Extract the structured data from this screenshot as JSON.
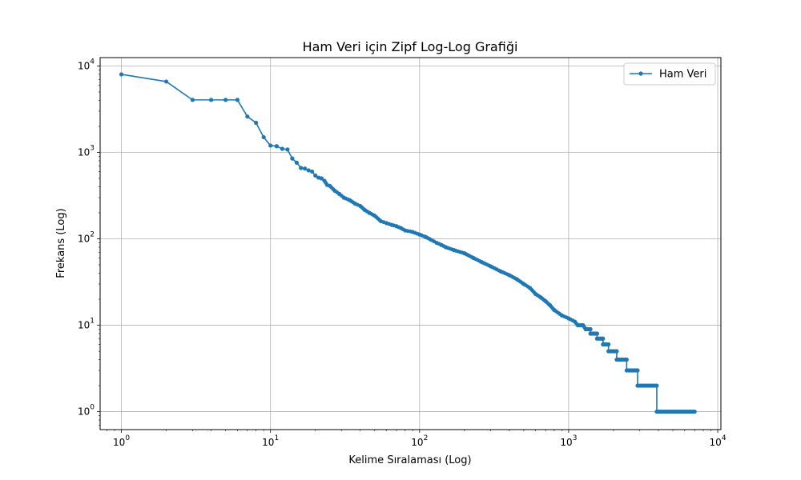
{
  "chart_data": {
    "type": "line",
    "title": "Ham Veri için Zipf Log-Log Grafiği",
    "xlabel": "Kelime Sıralaması (Log)",
    "ylabel": "Frekans (Log)",
    "xscale": "log",
    "yscale": "log",
    "xlim": [
      0.72,
      10500
    ],
    "ylim": [
      0.62,
      12500
    ],
    "grid": true,
    "legend": "top-right",
    "x_ticks": [
      {
        "base": "10",
        "exp": "0",
        "value": 1
      },
      {
        "base": "10",
        "exp": "1",
        "value": 10
      },
      {
        "base": "10",
        "exp": "2",
        "value": 100
      },
      {
        "base": "10",
        "exp": "3",
        "value": 1000
      },
      {
        "base": "10",
        "exp": "4",
        "value": 10000
      }
    ],
    "y_ticks": [
      {
        "base": "10",
        "exp": "0",
        "value": 1
      },
      {
        "base": "10",
        "exp": "1",
        "value": 10
      },
      {
        "base": "10",
        "exp": "2",
        "value": 100
      },
      {
        "base": "10",
        "exp": "3",
        "value": 1000
      },
      {
        "base": "10",
        "exp": "4",
        "value": 10000
      }
    ],
    "series": [
      {
        "name": "Ham Veri",
        "color": "#1f77b4",
        "marker": "circle",
        "points": [
          [
            1,
            8000
          ],
          [
            2,
            6600
          ],
          [
            3,
            4050
          ],
          [
            4,
            4050
          ],
          [
            5,
            4050
          ],
          [
            6,
            4050
          ],
          [
            7,
            2600
          ],
          [
            8,
            2200
          ],
          [
            9,
            1500
          ],
          [
            10,
            1200
          ],
          [
            11,
            1180
          ],
          [
            12,
            1100
          ],
          [
            13,
            1080
          ],
          [
            14,
            850
          ],
          [
            15,
            760
          ],
          [
            16,
            660
          ],
          [
            17,
            650
          ],
          [
            18,
            620
          ],
          [
            19,
            600
          ],
          [
            20,
            540
          ],
          [
            21,
            510
          ],
          [
            22,
            500
          ],
          [
            23,
            470
          ],
          [
            24,
            420
          ],
          [
            25,
            410
          ],
          [
            27,
            360
          ],
          [
            29,
            330
          ],
          [
            31,
            300
          ],
          [
            34,
            280
          ],
          [
            37,
            255
          ],
          [
            40,
            240
          ],
          [
            43,
            215
          ],
          [
            46,
            200
          ],
          [
            50,
            185
          ],
          [
            55,
            160
          ],
          [
            60,
            152
          ],
          [
            65,
            145
          ],
          [
            70,
            140
          ],
          [
            75,
            133
          ],
          [
            80,
            125
          ],
          [
            90,
            120
          ],
          [
            100,
            112
          ],
          [
            110,
            105
          ],
          [
            120,
            97
          ],
          [
            130,
            90
          ],
          [
            140,
            85
          ],
          [
            150,
            80
          ],
          [
            170,
            74
          ],
          [
            200,
            68
          ],
          [
            230,
            60
          ],
          [
            260,
            54
          ],
          [
            300,
            48
          ],
          [
            350,
            42
          ],
          [
            400,
            38
          ],
          [
            450,
            34
          ],
          [
            500,
            30
          ],
          [
            550,
            27
          ],
          [
            600,
            23
          ],
          [
            650,
            21
          ],
          [
            700,
            19
          ],
          [
            750,
            17
          ],
          [
            800,
            15
          ],
          [
            900,
            13
          ],
          [
            1000,
            12
          ],
          [
            1100,
            11
          ],
          [
            1150,
            10
          ],
          [
            1250,
            10
          ],
          [
            1300,
            9
          ],
          [
            1400,
            9
          ],
          [
            1400,
            8
          ],
          [
            1550,
            8
          ],
          [
            1550,
            7
          ],
          [
            1700,
            7
          ],
          [
            1700,
            6
          ],
          [
            1850,
            6
          ],
          [
            1850,
            5
          ],
          [
            2100,
            5
          ],
          [
            2100,
            4
          ],
          [
            2450,
            4
          ],
          [
            2450,
            3
          ],
          [
            2900,
            3
          ],
          [
            2900,
            2
          ],
          [
            3900,
            2
          ],
          [
            3900,
            1
          ],
          [
            7000,
            1
          ]
        ]
      }
    ]
  }
}
